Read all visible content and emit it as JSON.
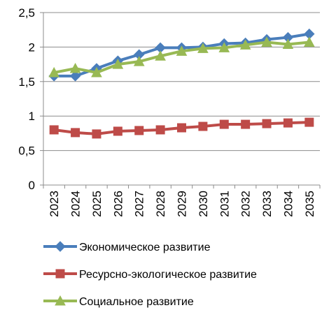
{
  "chart_data": {
    "type": "line",
    "categories": [
      "2023",
      "2024",
      "2025",
      "2026",
      "2027",
      "2028",
      "2029",
      "2030",
      "2031",
      "2032",
      "2033",
      "2034",
      "2035"
    ],
    "ylim": [
      0,
      2.5
    ],
    "yticks": [
      "0",
      "0,5",
      "1",
      "1,5",
      "2",
      "2,5"
    ],
    "ytick_values": [
      0,
      0.5,
      1,
      1.5,
      2,
      2.5
    ],
    "grid": "horizontal",
    "legend_position": "bottom",
    "series": [
      {
        "name": "Экономическое развитие",
        "marker": "diamond",
        "color": "#4A7EBB",
        "values": [
          1.58,
          1.58,
          1.69,
          1.8,
          1.89,
          1.99,
          1.99,
          2.0,
          2.05,
          2.06,
          2.11,
          2.14,
          2.19
        ]
      },
      {
        "name": "Ресурсно-экологическое развитие",
        "marker": "square",
        "color": "#BE4B48",
        "values": [
          0.8,
          0.76,
          0.74,
          0.78,
          0.79,
          0.8,
          0.83,
          0.85,
          0.88,
          0.88,
          0.89,
          0.9,
          0.91
        ]
      },
      {
        "name": "Социальное развитие",
        "marker": "triangle",
        "color": "#98B954",
        "values": [
          1.63,
          1.69,
          1.63,
          1.75,
          1.79,
          1.87,
          1.94,
          1.98,
          1.99,
          2.03,
          2.07,
          2.04,
          2.07
        ]
      }
    ]
  }
}
